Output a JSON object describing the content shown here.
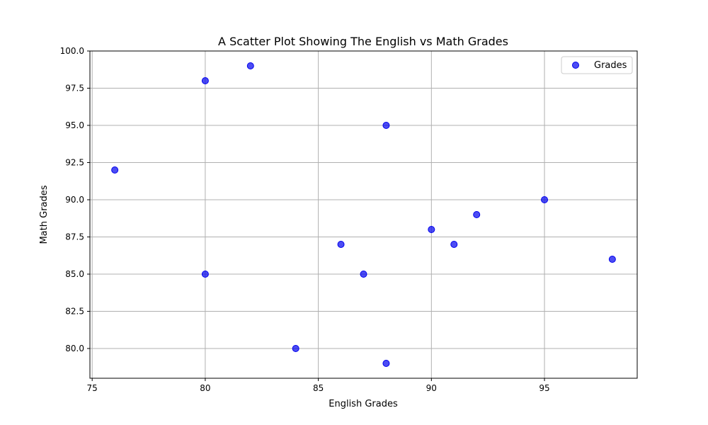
{
  "chart_data": {
    "type": "scatter",
    "title": "A Scatter Plot Showing The English vs Math Grades",
    "xlabel": "English Grades",
    "ylabel": "Math Grades",
    "xlim": [
      74.9,
      99.1
    ],
    "ylim": [
      78.0,
      100.0
    ],
    "x_ticks": [
      75,
      80,
      85,
      90,
      95
    ],
    "y_ticks": [
      80.0,
      82.5,
      85.0,
      87.5,
      90.0,
      92.5,
      95.0,
      97.5,
      100.0
    ],
    "x_tick_labels": [
      "75",
      "80",
      "85",
      "90",
      "95"
    ],
    "y_tick_labels": [
      "80.0",
      "82.5",
      "85.0",
      "87.5",
      "90.0",
      "92.5",
      "95.0",
      "97.5",
      "100.0"
    ],
    "grid": true,
    "legend_position": "top-right",
    "series": [
      {
        "name": "Grades",
        "color": "#0000ee",
        "points": [
          {
            "x": 76,
            "y": 92
          },
          {
            "x": 80,
            "y": 98
          },
          {
            "x": 80,
            "y": 85
          },
          {
            "x": 82,
            "y": 99
          },
          {
            "x": 84,
            "y": 80
          },
          {
            "x": 86,
            "y": 87
          },
          {
            "x": 87,
            "y": 85
          },
          {
            "x": 88,
            "y": 95
          },
          {
            "x": 88,
            "y": 79
          },
          {
            "x": 90,
            "y": 88
          },
          {
            "x": 91,
            "y": 87
          },
          {
            "x": 92,
            "y": 89
          },
          {
            "x": 95,
            "y": 90
          },
          {
            "x": 98,
            "y": 86
          }
        ]
      }
    ]
  }
}
